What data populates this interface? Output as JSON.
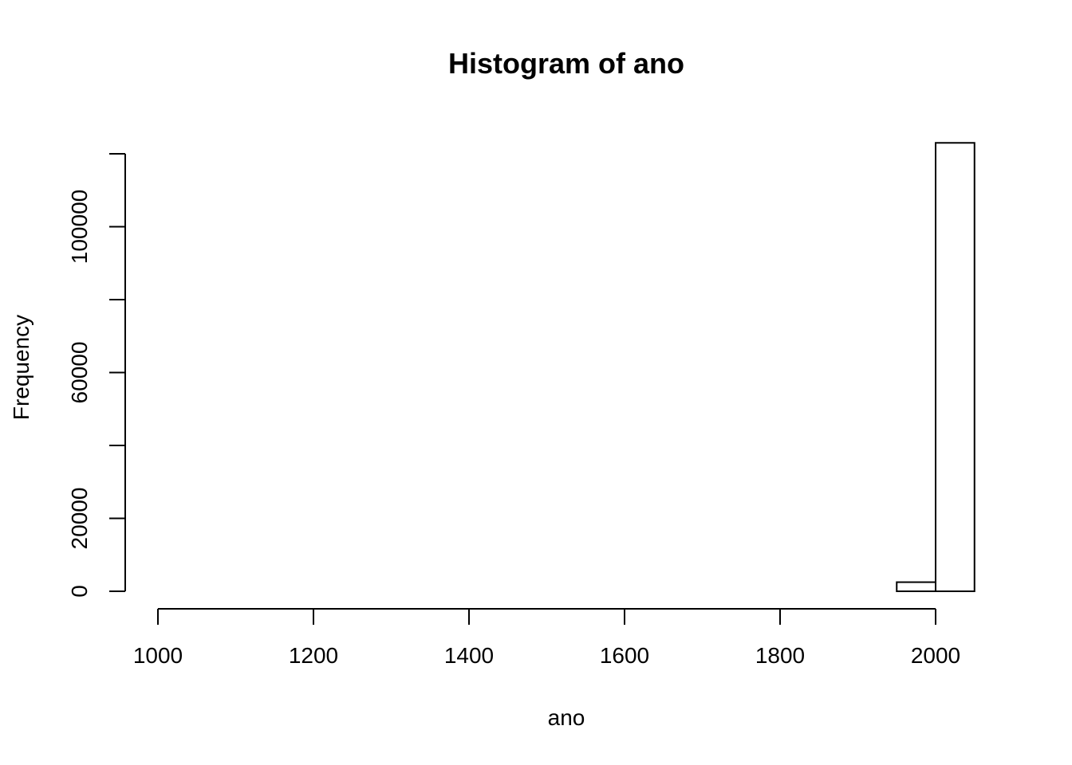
{
  "chart_data": {
    "type": "bar",
    "title": "Histogram of ano",
    "xlabel": "ano",
    "ylabel": "Frequency",
    "bin_width": 50,
    "bins": [
      {
        "start": 1000,
        "end": 1050,
        "count": 0
      },
      {
        "start": 1050,
        "end": 1100,
        "count": 0
      },
      {
        "start": 1100,
        "end": 1150,
        "count": 0
      },
      {
        "start": 1150,
        "end": 1200,
        "count": 0
      },
      {
        "start": 1200,
        "end": 1250,
        "count": 0
      },
      {
        "start": 1250,
        "end": 1300,
        "count": 0
      },
      {
        "start": 1300,
        "end": 1350,
        "count": 0
      },
      {
        "start": 1350,
        "end": 1400,
        "count": 0
      },
      {
        "start": 1400,
        "end": 1450,
        "count": 0
      },
      {
        "start": 1450,
        "end": 1500,
        "count": 0
      },
      {
        "start": 1500,
        "end": 1550,
        "count": 0
      },
      {
        "start": 1550,
        "end": 1600,
        "count": 0
      },
      {
        "start": 1600,
        "end": 1650,
        "count": 0
      },
      {
        "start": 1650,
        "end": 1700,
        "count": 0
      },
      {
        "start": 1700,
        "end": 1750,
        "count": 0
      },
      {
        "start": 1750,
        "end": 1800,
        "count": 0
      },
      {
        "start": 1800,
        "end": 1850,
        "count": 0
      },
      {
        "start": 1850,
        "end": 1900,
        "count": 0
      },
      {
        "start": 1900,
        "end": 1950,
        "count": 0
      },
      {
        "start": 1950,
        "end": 2000,
        "count": 2500
      },
      {
        "start": 2000,
        "end": 2050,
        "count": 123000
      }
    ],
    "x_ticks": [
      1000,
      1200,
      1400,
      1600,
      1800,
      2000
    ],
    "y_ticks": [
      0,
      20000,
      40000,
      60000,
      80000,
      100000,
      120000
    ],
    "y_tick_labels": [
      "0",
      "20000",
      "",
      "60000",
      "",
      "100000",
      ""
    ],
    "xlim": [
      1000,
      2050
    ],
    "ylim": [
      0,
      120000
    ],
    "grid": false,
    "legend": "none",
    "colors": {
      "bar_fill": "#ffffff",
      "bar_stroke": "#000000"
    }
  }
}
